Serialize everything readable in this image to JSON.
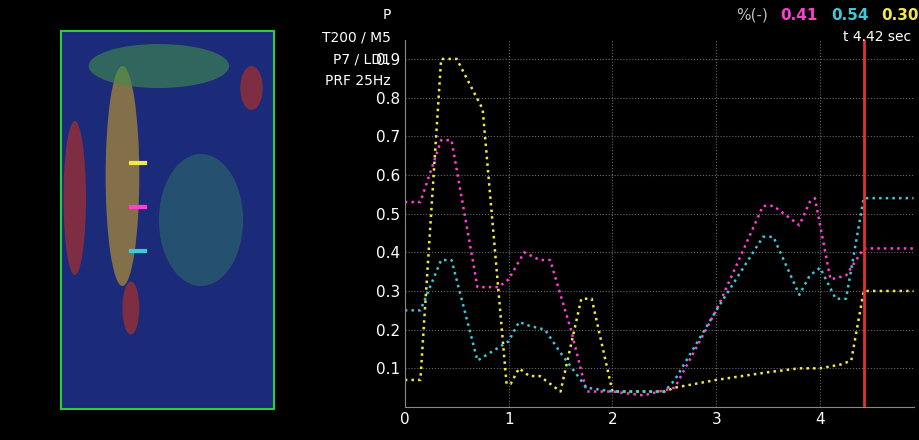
{
  "chart_data": {
    "type": "line",
    "unit_label": "%(-)",
    "readouts": [
      {
        "text": "0.41",
        "color": "#ff3fd0"
      },
      {
        "text": "0.54",
        "color": "#3ec8d8"
      },
      {
        "text": "0.30",
        "color": "#f2e84a"
      }
    ],
    "time_label": "t 4.42 sec",
    "cursor_x": 4.42,
    "cursor_color": "#e8312a",
    "settings_texts": [
      "P",
      "T200 / M5",
      "P7 / LD1",
      "PRF 25Hz"
    ],
    "xlim": [
      0,
      4.9
    ],
    "xticks": [
      0,
      1,
      2,
      3,
      4
    ],
    "ylim": [
      0,
      0.95
    ],
    "yticks": [
      0.1,
      0.2,
      0.3,
      0.4,
      0.5,
      0.6,
      0.7,
      0.8,
      0.9
    ],
    "grid": true,
    "line_style": "dotted",
    "series": [
      {
        "color": "#f2e84a",
        "x": [
          0,
          0.15,
          0.35,
          0.5,
          0.75,
          0.98,
          1.02,
          1.1,
          1.2,
          1.3,
          1.5,
          1.7,
          1.8,
          2.0,
          2.5,
          2.6,
          3.0,
          3.5,
          3.8,
          4.0,
          4.2,
          4.3,
          4.42,
          4.9
        ],
        "values": [
          0.07,
          0.07,
          0.9,
          0.9,
          0.77,
          0.06,
          0.06,
          0.1,
          0.08,
          0.08,
          0.04,
          0.28,
          0.28,
          0.04,
          0.04,
          0.05,
          0.07,
          0.09,
          0.1,
          0.1,
          0.11,
          0.12,
          0.3,
          0.3
        ]
      },
      {
        "color": "#ff3fd0",
        "x": [
          0,
          0.15,
          0.35,
          0.45,
          0.7,
          0.9,
          1.0,
          1.15,
          1.3,
          1.4,
          1.6,
          1.75,
          2.0,
          2.3,
          2.6,
          3.0,
          3.45,
          3.55,
          3.8,
          3.9,
          3.95,
          4.1,
          4.25,
          4.42,
          4.9
        ],
        "values": [
          0.53,
          0.53,
          0.69,
          0.69,
          0.31,
          0.31,
          0.33,
          0.4,
          0.38,
          0.38,
          0.2,
          0.04,
          0.04,
          0.03,
          0.05,
          0.25,
          0.52,
          0.52,
          0.47,
          0.53,
          0.54,
          0.33,
          0.34,
          0.41,
          0.41
        ]
      },
      {
        "color": "#3ec8d8",
        "x": [
          0,
          0.15,
          0.35,
          0.45,
          0.7,
          1.0,
          1.1,
          1.2,
          1.35,
          1.5,
          1.75,
          2.0,
          2.5,
          2.6,
          3.0,
          3.45,
          3.55,
          3.8,
          3.9,
          4.0,
          4.15,
          4.25,
          4.42,
          4.9
        ],
        "values": [
          0.25,
          0.25,
          0.38,
          0.38,
          0.12,
          0.17,
          0.22,
          0.21,
          0.2,
          0.14,
          0.05,
          0.04,
          0.04,
          0.07,
          0.25,
          0.44,
          0.44,
          0.29,
          0.34,
          0.36,
          0.28,
          0.28,
          0.54,
          0.54
        ]
      }
    ]
  }
}
